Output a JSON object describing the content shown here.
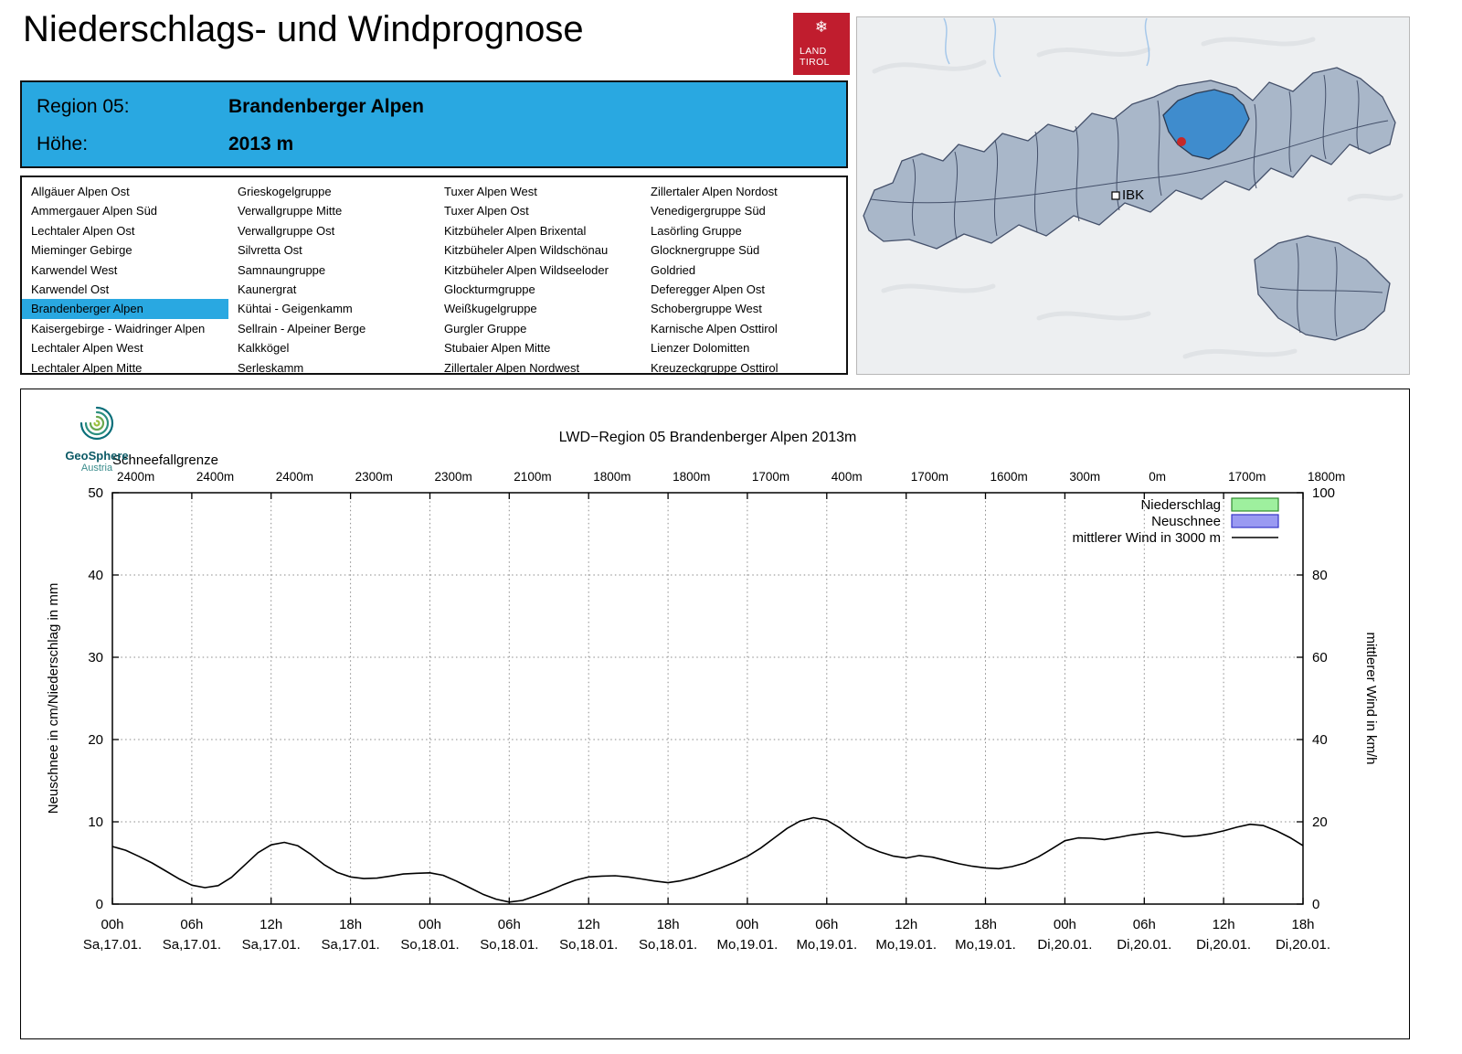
{
  "page": {
    "title": "Niederschlags- und Windprognose"
  },
  "logo": {
    "line1": "LAND",
    "line2": "TIROL"
  },
  "colors": {
    "accent_blue": "#29a8e1",
    "logo_red": "#c01d2e",
    "map_highlight": "#3f8ccd",
    "map_region_fill": "#a9b7c9"
  },
  "region_header": {
    "region_label": "Region 05:",
    "region_value": "Brandenberger Alpen",
    "alt_label": "Höhe:",
    "alt_value": "2013 m"
  },
  "region_list": {
    "selected": "Brandenberger Alpen",
    "columns": [
      [
        "Allgäuer Alpen Ost",
        "Ammergauer Alpen Süd",
        "Lechtaler Alpen Ost",
        "Mieminger Gebirge",
        "Karwendel West",
        "Karwendel Ost",
        "Brandenberger Alpen",
        "Kaisergebirge - Waidringer Alpen",
        "Lechtaler Alpen West",
        "Lechtaler Alpen Mitte"
      ],
      [
        "Grieskogelgruppe",
        "Verwallgruppe Mitte",
        "Verwallgruppe Ost",
        "Silvretta Ost",
        "Samnaungruppe",
        "Kaunergrat",
        "Kühtai - Geigenkamm",
        "Sellrain - Alpeiner Berge",
        "Kalkkögel",
        "Serleskamm"
      ],
      [
        "Tuxer Alpen West",
        "Tuxer Alpen Ost",
        "Kitzbüheler Alpen Brixental",
        "Kitzbüheler Alpen Wildschönau",
        "Kitzbüheler Alpen Wildseeloder",
        "Glockturmgruppe",
        "Weißkugelgruppe",
        "Gurgler Gruppe",
        "Stubaier Alpen Mitte",
        "Zillertaler Alpen Nordwest"
      ],
      [
        "Zillertaler Alpen Nordost",
        "Venedigergruppe Süd",
        "Lasörling Gruppe",
        "Glocknergruppe Süd",
        "Goldried",
        "Deferegger Alpen Ost",
        "Schobergruppe West",
        "Karnische Alpen Osttirol",
        "Lienzer Dolomitten",
        "Kreuzeckgruppe Osttirol"
      ]
    ]
  },
  "map": {
    "city_label": "IBK"
  },
  "geosphere": {
    "name": "GeoSphere",
    "sub": "Austria"
  },
  "chart_data": {
    "type": "line",
    "title": "LWD−Region 05 Brandenberger Alpen 2013m",
    "snowline_label": "Schneefallgrenze",
    "snowline_values": [
      "2400m",
      "2400m",
      "2400m",
      "2300m",
      "2300m",
      "2100m",
      "1800m",
      "1800m",
      "1700m",
      "400m",
      "1700m",
      "1600m",
      "300m",
      "0m",
      "1700m",
      "1800m"
    ],
    "x_ticks_hours": [
      "00h",
      "06h",
      "12h",
      "18h",
      "00h",
      "06h",
      "12h",
      "18h",
      "00h",
      "06h",
      "12h",
      "18h",
      "00h",
      "06h",
      "12h",
      "18h"
    ],
    "x_ticks_dates": [
      "Sa,17.01.",
      "Sa,17.01.",
      "Sa,17.01.",
      "Sa,17.01.",
      "So,18.01.",
      "So,18.01.",
      "So,18.01.",
      "So,18.01.",
      "Mo,19.01.",
      "Mo,19.01.",
      "Mo,19.01.",
      "Mo,19.01.",
      "Di,20.01.",
      "Di,20.01.",
      "Di,20.01.",
      "Di,20.01."
    ],
    "ylabel_left": "Neuschnee in cm/Niederschlag in mm",
    "ylabel_right": "mittlerer Wind in km/h",
    "ylim_left": [
      0,
      50
    ],
    "ylim_right": [
      0,
      100
    ],
    "x_range_hours": [
      0,
      90
    ],
    "grid": true,
    "legend_position": "top-right",
    "legend": [
      {
        "label": "Niederschlag",
        "type": "box",
        "fill": "#9ef09e",
        "border": "#2e8b2e"
      },
      {
        "label": "Neuschnee",
        "type": "box",
        "fill": "#9a9af2",
        "border": "#3535c8"
      },
      {
        "label": "mittlerer Wind in 3000 m",
        "type": "line",
        "color": "#000000"
      }
    ],
    "series": [
      {
        "name": "Niederschlag",
        "axis": "left",
        "type": "bar",
        "unit": "mm",
        "values": [
          0,
          0,
          0,
          0,
          0,
          0,
          0,
          0,
          0,
          0,
          0,
          0,
          0,
          0,
          0,
          0
        ]
      },
      {
        "name": "Neuschnee",
        "axis": "left",
        "type": "bar",
        "unit": "cm",
        "values": [
          0,
          0,
          0,
          0,
          0,
          0,
          0,
          0,
          0,
          0,
          0,
          0,
          0,
          0,
          0,
          0
        ]
      },
      {
        "name": "mittlerer Wind in 3000 m",
        "axis": "right",
        "type": "line",
        "unit": "km/h",
        "points": [
          [
            0,
            14
          ],
          [
            1,
            13.1
          ],
          [
            2,
            11.6
          ],
          [
            3,
            10
          ],
          [
            4,
            8.1
          ],
          [
            5,
            6.2
          ],
          [
            6,
            4.6
          ],
          [
            7,
            4
          ],
          [
            8,
            4.5
          ],
          [
            9,
            6.5
          ],
          [
            10,
            9.5
          ],
          [
            11,
            12.5
          ],
          [
            12,
            14.4
          ],
          [
            13,
            15
          ],
          [
            14,
            14.2
          ],
          [
            15,
            12.1
          ],
          [
            16,
            9.6
          ],
          [
            17,
            7.7
          ],
          [
            18,
            6.6
          ],
          [
            19,
            6.2
          ],
          [
            20,
            6.3
          ],
          [
            21,
            6.8
          ],
          [
            22,
            7.3
          ],
          [
            23,
            7.5
          ],
          [
            24,
            7.6
          ],
          [
            25,
            7
          ],
          [
            26,
            5.6
          ],
          [
            27,
            4
          ],
          [
            28,
            2.4
          ],
          [
            29,
            1.2
          ],
          [
            30,
            0.5
          ],
          [
            31,
            0.9
          ],
          [
            32,
            2
          ],
          [
            33,
            3.2
          ],
          [
            34,
            4.6
          ],
          [
            35,
            5.8
          ],
          [
            36,
            6.6
          ],
          [
            37,
            6.8
          ],
          [
            38,
            6.9
          ],
          [
            39,
            6.6
          ],
          [
            40,
            6.1
          ],
          [
            41,
            5.6
          ],
          [
            42,
            5.2
          ],
          [
            43,
            5.7
          ],
          [
            44,
            6.5
          ],
          [
            45,
            7.6
          ],
          [
            46,
            8.8
          ],
          [
            47,
            10.1
          ],
          [
            48,
            11.6
          ],
          [
            49,
            13.6
          ],
          [
            50,
            16
          ],
          [
            51,
            18.4
          ],
          [
            52,
            20.2
          ],
          [
            53,
            21
          ],
          [
            54,
            20.4
          ],
          [
            55,
            18.5
          ],
          [
            56,
            16.1
          ],
          [
            57,
            14
          ],
          [
            58,
            12.7
          ],
          [
            59,
            11.7
          ],
          [
            60,
            11.2
          ],
          [
            61,
            11.8
          ],
          [
            62,
            11.4
          ],
          [
            63,
            10.6
          ],
          [
            64,
            9.8
          ],
          [
            65,
            9.2
          ],
          [
            66,
            8.8
          ],
          [
            67,
            8.6
          ],
          [
            68,
            9.1
          ],
          [
            69,
            10
          ],
          [
            70,
            11.5
          ],
          [
            71,
            13.4
          ],
          [
            72,
            15.4
          ],
          [
            73,
            16.1
          ],
          [
            74,
            16
          ],
          [
            75,
            15.7
          ],
          [
            76,
            16.2
          ],
          [
            77,
            16.8
          ],
          [
            78,
            17.2
          ],
          [
            79,
            17.5
          ],
          [
            80,
            17
          ],
          [
            81,
            16.4
          ],
          [
            82,
            16.6
          ],
          [
            83,
            17.1
          ],
          [
            84,
            17.8
          ],
          [
            85,
            18.7
          ],
          [
            86,
            19.4
          ],
          [
            87,
            19.1
          ],
          [
            88,
            17.8
          ],
          [
            89,
            16.2
          ],
          [
            90,
            14.2
          ]
        ]
      }
    ]
  }
}
